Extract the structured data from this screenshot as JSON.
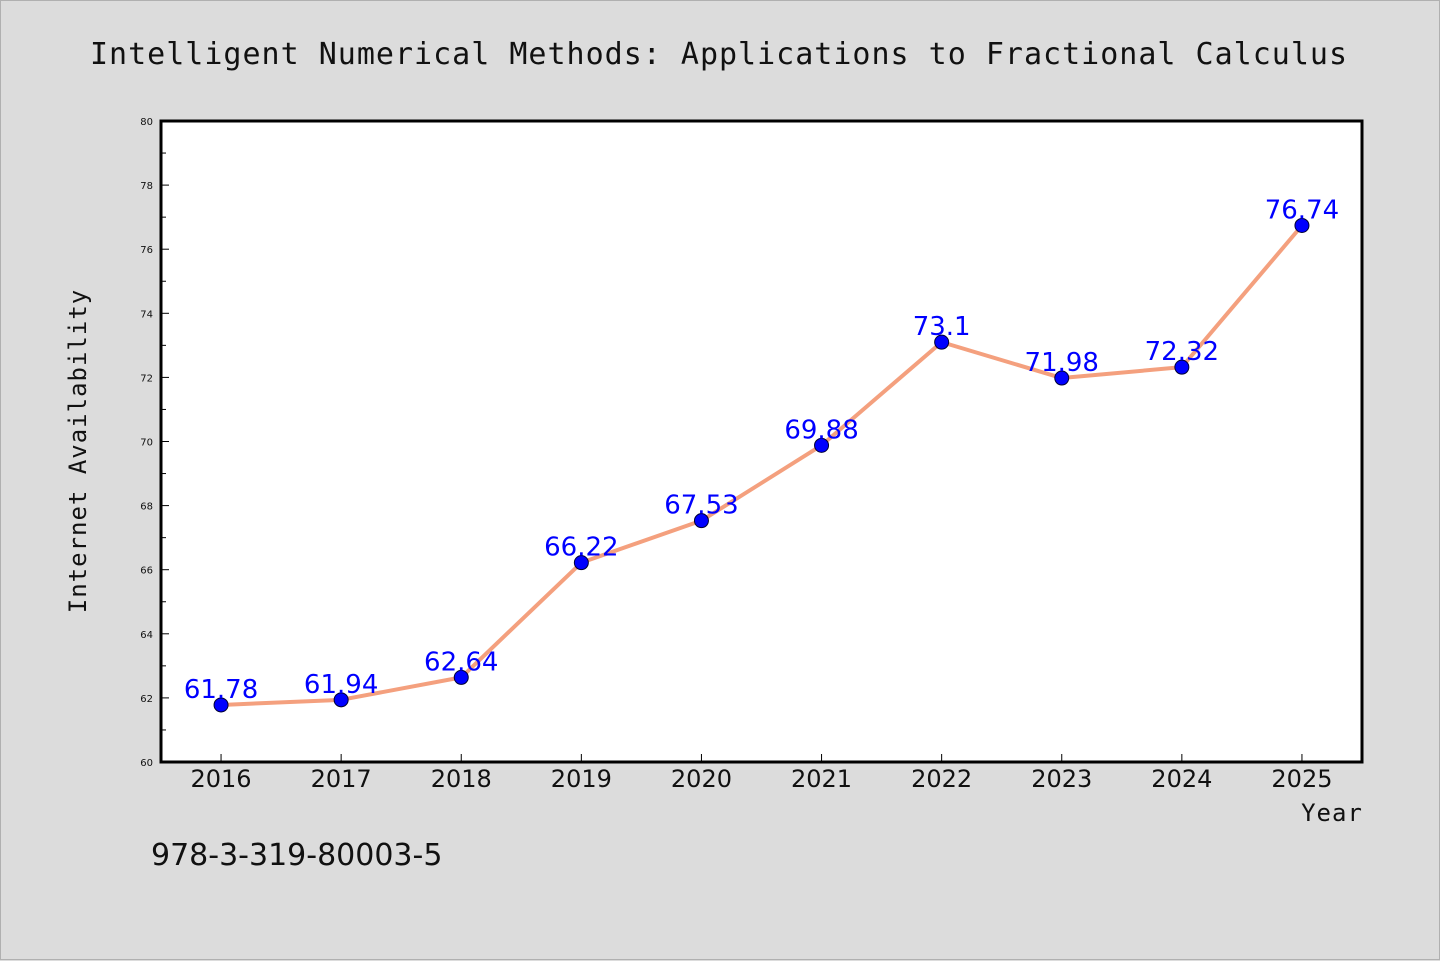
{
  "chart_data": {
    "type": "line",
    "title": "Intelligent Numerical Methods: Applications to Fractional Calculus",
    "xlabel": "Year",
    "ylabel": "Internet Availability",
    "x": [
      "2016",
      "2017",
      "2018",
      "2019",
      "2020",
      "2021",
      "2022",
      "2023",
      "2024",
      "2025"
    ],
    "series": [
      {
        "values": [
          61.78,
          61.94,
          62.64,
          66.22,
          67.53,
          69.88,
          73.1,
          71.98,
          72.32,
          76.74
        ],
        "data_labels": [
          "61.78",
          "61.94",
          "62.64",
          "66.22",
          "67.53",
          "69.88",
          "73.1",
          "71.98",
          "72.32",
          "76.74"
        ],
        "line_color": "#f4a07e",
        "marker_color": "#0000ff"
      }
    ],
    "ylim": [
      60,
      80
    ],
    "yticks": [
      "60",
      "62",
      "64",
      "66",
      "68",
      "70",
      "72",
      "74",
      "76",
      "78",
      "80"
    ],
    "grid": false,
    "legend": "none"
  },
  "footer": {
    "isbn": "978-3-319-80003-5"
  },
  "colors": {
    "background": "#dcdcdc",
    "plot_area": "#ffffff",
    "label_color": "#0000ff"
  }
}
